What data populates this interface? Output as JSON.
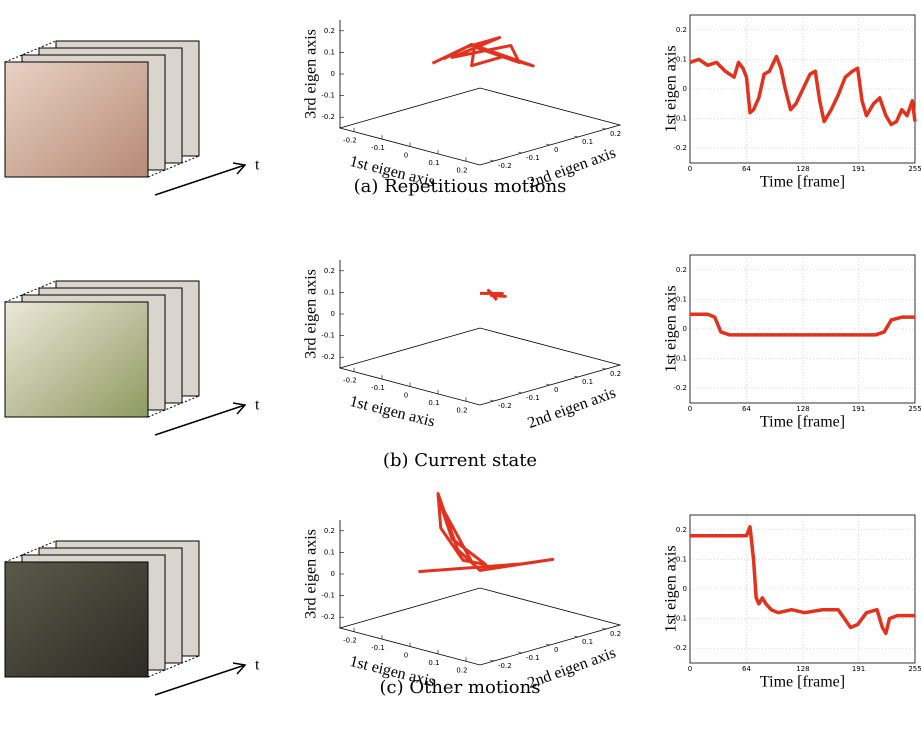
{
  "panels": [
    {
      "caption": "(a) Repetitious motions",
      "time_label": "t"
    },
    {
      "caption": "(b) Current state",
      "time_label": "t"
    },
    {
      "caption": "(c) Other motions",
      "time_label": "t"
    }
  ],
  "chart_data": [
    {
      "type": "line3d",
      "xlabel": "1st eigen axis",
      "ylabel": "2nd eigen axis",
      "zlabel": "3rd eigen axis",
      "xlim": [
        -0.25,
        0.25
      ],
      "ylim": [
        -0.25,
        0.25
      ],
      "zlim": [
        -0.25,
        0.25
      ],
      "xticks": [
        -0.2,
        -0.1,
        0,
        0.1,
        0.2
      ],
      "yticks": [
        -0.2,
        -0.1,
        0,
        0.1,
        0.2
      ],
      "zticks": [
        -0.2,
        -0.1,
        0,
        0.1,
        0.2
      ],
      "color": "#e2321e",
      "x": [
        -0.12,
        -0.05,
        0.02,
        -0.08,
        0.05,
        0.12,
        0.02,
        -0.06,
        0.08,
        0.14,
        -0.03,
        -0.1
      ],
      "y": [
        -0.05,
        0.0,
        0.05,
        -0.02,
        0.06,
        0.02,
        -0.04,
        0.03,
        0.0,
        0.05,
        0.0,
        -0.03
      ],
      "z": [
        0.02,
        0.1,
        0.15,
        0.05,
        0.12,
        0.08,
        0.14,
        0.0,
        0.1,
        0.06,
        0.12,
        0.04
      ]
    },
    {
      "type": "line",
      "xlabel": "Time [frame]",
      "ylabel": "1st eigen axis",
      "xlim": [
        0,
        255
      ],
      "ylim": [
        -0.25,
        0.25
      ],
      "xticks": [
        0,
        64,
        128,
        191,
        255
      ],
      "yticks": [
        -0.2,
        -0.1,
        0,
        0.1,
        0.2
      ],
      "grid": true,
      "color": "#e2321e",
      "x": [
        0,
        10,
        20,
        30,
        40,
        50,
        55,
        60,
        64,
        68,
        72,
        78,
        84,
        90,
        98,
        103,
        108,
        114,
        120,
        128,
        136,
        142,
        147,
        152,
        160,
        168,
        176,
        184,
        190,
        195,
        200,
        208,
        215,
        222,
        228,
        234,
        240,
        246,
        252,
        255
      ],
      "values": [
        0.09,
        0.1,
        0.08,
        0.09,
        0.06,
        0.04,
        0.09,
        0.07,
        0.04,
        -0.08,
        -0.07,
        -0.03,
        0.05,
        0.06,
        0.11,
        0.07,
        0.0,
        -0.07,
        -0.05,
        0.0,
        0.05,
        0.06,
        -0.04,
        -0.11,
        -0.07,
        -0.02,
        0.04,
        0.06,
        0.07,
        -0.04,
        -0.09,
        -0.05,
        -0.03,
        -0.09,
        -0.12,
        -0.11,
        -0.07,
        -0.09,
        -0.04,
        -0.11
      ]
    },
    {
      "type": "line3d",
      "xlabel": "1st eigen axis",
      "ylabel": "2nd eigen axis",
      "zlabel": "3rd eigen axis",
      "xlim": [
        -0.25,
        0.25
      ],
      "ylim": [
        -0.25,
        0.25
      ],
      "zlim": [
        -0.25,
        0.25
      ],
      "xticks": [
        -0.2,
        -0.1,
        0,
        0.1,
        0.2
      ],
      "yticks": [
        -0.2,
        -0.1,
        0,
        0.1,
        0.2
      ],
      "zticks": [
        -0.2,
        -0.1,
        0,
        0.1,
        0.2
      ],
      "color": "#e2321e",
      "x": [
        -0.04,
        0.03,
        -0.02,
        0.04,
        0.0,
        -0.03,
        0.02
      ],
      "y": [
        0.04,
        0.05,
        0.06,
        0.05,
        0.05,
        0.06,
        0.04
      ],
      "z": [
        0.06,
        0.08,
        0.05,
        0.07,
        0.06,
        0.07,
        0.05
      ]
    },
    {
      "type": "line",
      "xlabel": "Time [frame]",
      "ylabel": "1st eigen axis",
      "xlim": [
        0,
        255
      ],
      "ylim": [
        -0.25,
        0.25
      ],
      "xticks": [
        0,
        64,
        128,
        191,
        255
      ],
      "yticks": [
        -0.2,
        -0.1,
        0,
        0.1,
        0.2
      ],
      "grid": true,
      "color": "#e2321e",
      "x": [
        0,
        20,
        28,
        35,
        45,
        80,
        120,
        160,
        200,
        210,
        220,
        228,
        240,
        255
      ],
      "values": [
        0.05,
        0.05,
        0.04,
        -0.01,
        -0.02,
        -0.02,
        -0.02,
        -0.02,
        -0.02,
        -0.02,
        -0.01,
        0.03,
        0.04,
        0.04
      ]
    },
    {
      "type": "line3d",
      "xlabel": "1st eigen axis",
      "ylabel": "2nd eigen axis",
      "zlabel": "3rd eigen axis",
      "xlim": [
        -0.25,
        0.25
      ],
      "ylim": [
        -0.25,
        0.25
      ],
      "zlim": [
        -0.25,
        0.25
      ],
      "xticks": [
        -0.2,
        -0.1,
        0,
        0.1,
        0.2
      ],
      "yticks": [
        -0.2,
        -0.1,
        0,
        0.1,
        0.2
      ],
      "zticks": [
        -0.2,
        -0.1,
        0,
        0.1,
        0.2
      ],
      "color": "#e2321e",
      "x": [
        -0.12,
        0.05,
        0.12,
        0.0,
        -0.05,
        -0.1,
        -0.08,
        -0.04,
        0.0,
        -0.06,
        -0.09,
        -0.03
      ],
      "y": [
        -0.1,
        0.1,
        0.14,
        0.0,
        -0.03,
        -0.05,
        -0.06,
        -0.02,
        0.02,
        -0.04,
        -0.05,
        0.0
      ],
      "z": [
        0.0,
        0.02,
        0.05,
        0.01,
        0.1,
        0.35,
        0.2,
        0.05,
        0.03,
        0.15,
        0.3,
        0.04
      ]
    },
    {
      "type": "line",
      "xlabel": "Time [frame]",
      "ylabel": "1st eigen axis",
      "xlim": [
        0,
        255
      ],
      "ylim": [
        -0.25,
        0.25
      ],
      "xticks": [
        0,
        64,
        128,
        191,
        255
      ],
      "yticks": [
        -0.2,
        -0.1,
        0,
        0.1,
        0.2
      ],
      "grid": true,
      "color": "#e2321e",
      "x": [
        0,
        30,
        60,
        64,
        68,
        72,
        75,
        78,
        82,
        86,
        92,
        100,
        115,
        130,
        150,
        168,
        175,
        182,
        190,
        200,
        212,
        218,
        222,
        226,
        235,
        255
      ],
      "values": [
        0.18,
        0.18,
        0.18,
        0.18,
        0.21,
        0.1,
        -0.03,
        -0.05,
        -0.03,
        -0.05,
        -0.07,
        -0.08,
        -0.07,
        -0.08,
        -0.07,
        -0.07,
        -0.1,
        -0.13,
        -0.12,
        -0.08,
        -0.07,
        -0.13,
        -0.15,
        -0.1,
        -0.09,
        -0.09
      ]
    }
  ]
}
